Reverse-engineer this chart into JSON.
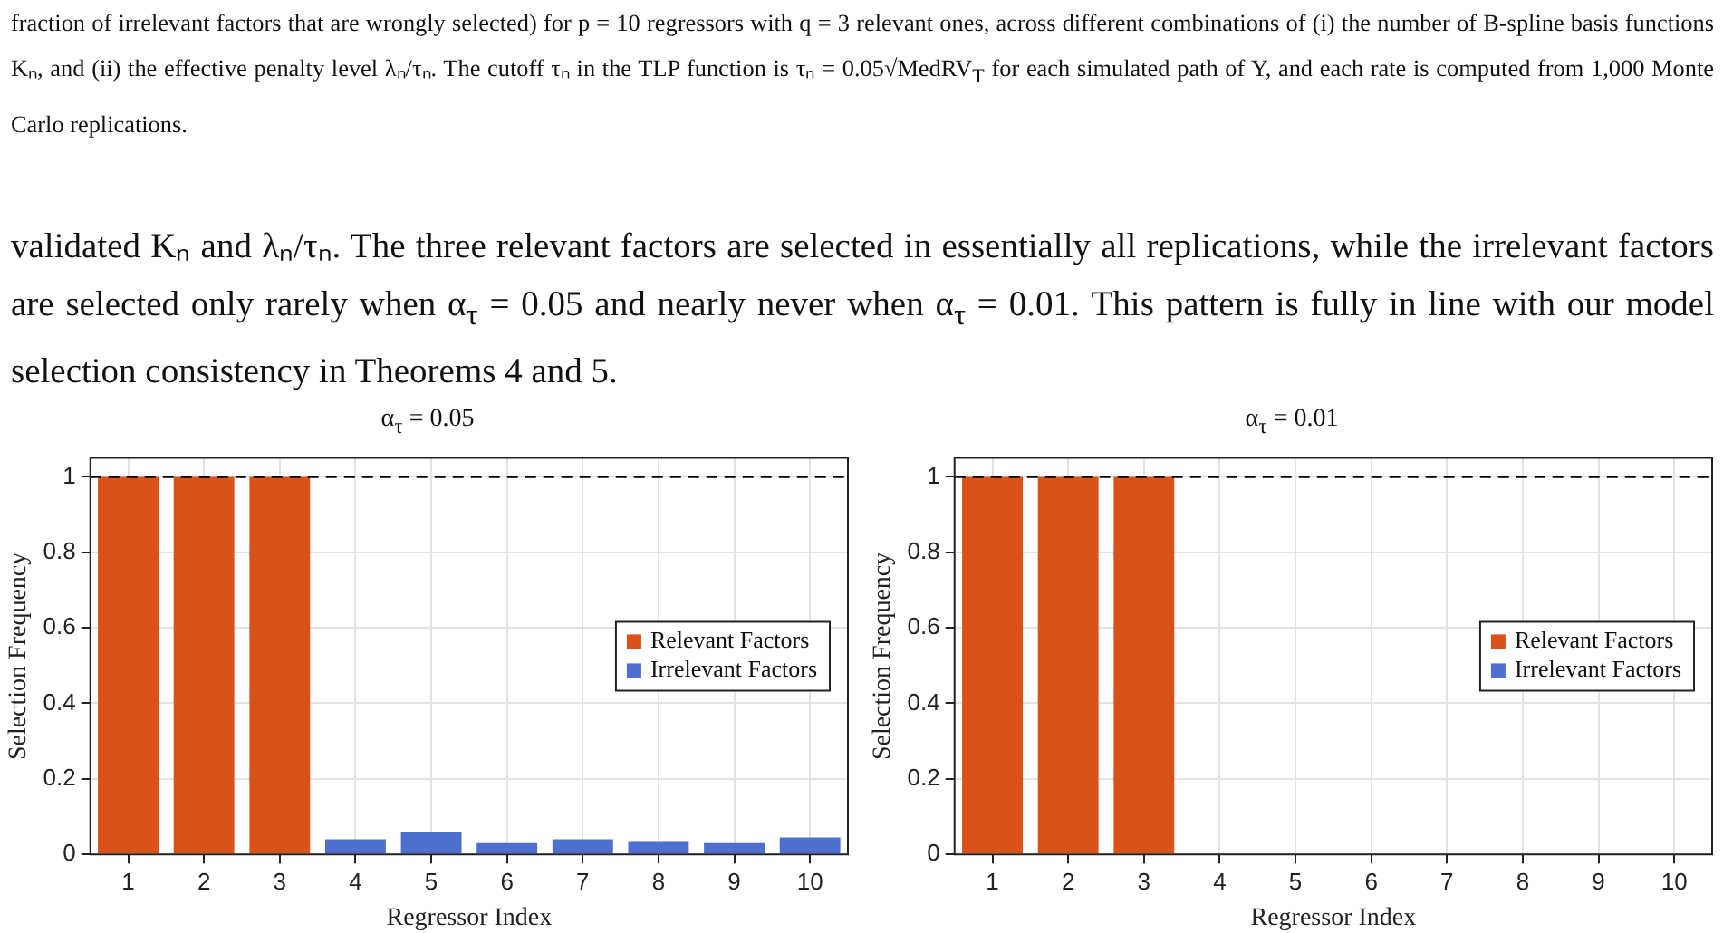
{
  "chart_data": [
    {
      "type": "bar",
      "title": "α$_{τ}$ = 0.05",
      "xlabel": "Regressor Index",
      "ylabel": "Selection Frequency",
      "annotations": [
        "fraction of irrelevant factors that are wrongly selected) for p = 10 regressors with q = 3 relevant ones, across different combinations of (i) the number of B-spline basis functions Kₙ, and (ii) the effective penalty level λₙ/τₙ. The cutoff τₙ in the TLP function is τₙ = 0.05√MedRV$_{T}$ for each simulated path of Y, and each rate is computed from 1,000 Monte Carlo replications.",
        "validated Kₙ and λₙ/τₙ. The three relevant factors are selected in essentially all replications, while the irrelevant factors are selected only rarely when α$_{τ}$ = 0.05 and nearly never when α$_{τ}$ = 0.01. This pattern is fully in line with our model selection consistency in Theorems 4 and 5."
      ],
      "categories": [
        "1",
        "2",
        "3",
        "4",
        "5",
        "6",
        "7",
        "8",
        "9",
        "10"
      ],
      "series": [
        {
          "name": "Relevant Factors",
          "color": "#d95319",
          "values": [
            1,
            1,
            1,
            null,
            null,
            null,
            null,
            null,
            null,
            null
          ]
        },
        {
          "name": "Irrelevant Factors",
          "color": "#4d70d0",
          "values": [
            null,
            null,
            null,
            0.04,
            0.06,
            0.03,
            0.04,
            0.035,
            0.03,
            0.045
          ]
        }
      ],
      "ylim": [
        0,
        1.05
      ],
      "yticks": [
        0,
        0.2,
        0.4,
        0.6,
        0.8,
        1
      ],
      "grid": true,
      "legend": "right",
      "ref_lines": [
        {
          "axis": "y",
          "value": 1,
          "line_style": "dashed",
          "color": "#000000"
        }
      ]
    },
    {
      "type": "bar",
      "title": "α$_{τ}$ = 0.01",
      "xlabel": "Regressor Index",
      "ylabel": "Selection Frequency",
      "categories": [
        "1",
        "2",
        "3",
        "4",
        "5",
        "6",
        "7",
        "8",
        "9",
        "10"
      ],
      "series": [
        {
          "name": "Relevant Factors",
          "color": "#d95319",
          "values": [
            1,
            1,
            1,
            null,
            null,
            null,
            null,
            null,
            null,
            null
          ]
        },
        {
          "name": "Irrelevant Factors",
          "color": "#4d70d0",
          "values": [
            null,
            null,
            null,
            0,
            0,
            0,
            0,
            0,
            0,
            0
          ]
        }
      ],
      "ylim": [
        0,
        1.05
      ],
      "yticks": [
        0,
        0.2,
        0.4,
        0.6,
        0.8,
        1
      ],
      "grid": true,
      "legend": "right",
      "ref_lines": [
        {
          "axis": "y",
          "value": 1,
          "line_style": "dashed",
          "color": "#000000"
        }
      ]
    }
  ]
}
